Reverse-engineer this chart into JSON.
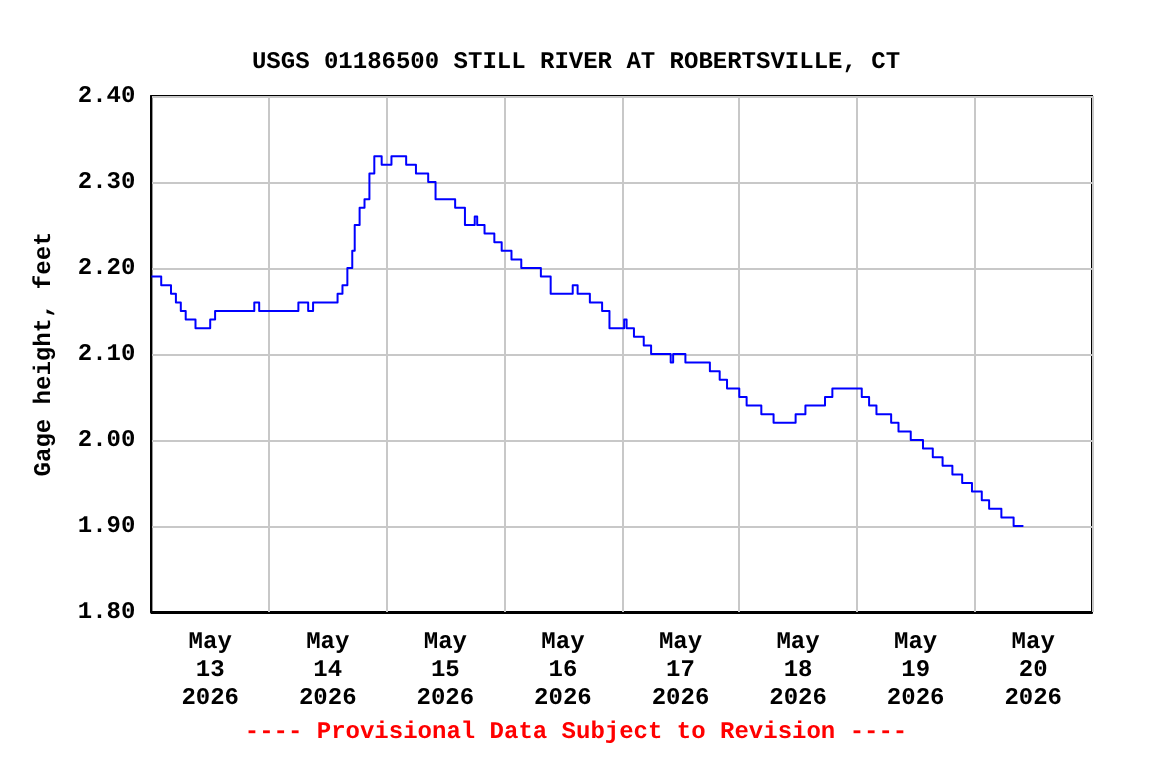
{
  "chart_data": {
    "type": "step",
    "title": "USGS 01186500 STILL RIVER AT ROBERTSVILLE, CT",
    "ylabel": "Gage height, feet",
    "annotations": [
      "---- Provisional Data Subject to Revision ----"
    ],
    "grid": true,
    "marker": "none",
    "line_style": "solid",
    "xlim": [
      "2026-05-13T00:00",
      "2026-05-21T00:00"
    ],
    "xticks": [
      {
        "value": "2026-05-13T00:00",
        "label": null
      },
      {
        "value": "2026-05-13T12:00",
        "label": "May\n13\n2026"
      },
      {
        "value": "2026-05-14T00:00",
        "label": null
      },
      {
        "value": "2026-05-14T12:00",
        "label": "May\n14\n2026"
      },
      {
        "value": "2026-05-15T00:00",
        "label": null
      },
      {
        "value": "2026-05-15T12:00",
        "label": "May\n15\n2026"
      },
      {
        "value": "2026-05-16T00:00",
        "label": null
      },
      {
        "value": "2026-05-16T12:00",
        "label": "May\n16\n2026"
      },
      {
        "value": "2026-05-17T00:00",
        "label": null
      },
      {
        "value": "2026-05-17T12:00",
        "label": "May\n17\n2026"
      },
      {
        "value": "2026-05-18T00:00",
        "label": null
      },
      {
        "value": "2026-05-18T12:00",
        "label": "May\n18\n2026"
      },
      {
        "value": "2026-05-19T00:00",
        "label": null
      },
      {
        "value": "2026-05-19T12:00",
        "label": "May\n19\n2026"
      },
      {
        "value": "2026-05-20T00:00",
        "label": null
      },
      {
        "value": "2026-05-20T12:00",
        "label": "May\n20\n2026"
      },
      {
        "value": "2026-05-21T00:00",
        "label": null
      }
    ],
    "ylim": [
      1.8,
      2.4
    ],
    "yticks": [
      {
        "value": 1.8,
        "label": "1.80"
      },
      {
        "value": 1.9,
        "label": "1.90"
      },
      {
        "value": 2.0,
        "label": "2.00"
      },
      {
        "value": 2.1,
        "label": "2.10"
      },
      {
        "value": 2.2,
        "label": "2.20"
      },
      {
        "value": 2.3,
        "label": "2.30"
      },
      {
        "value": 2.4,
        "label": "2.40"
      }
    ],
    "series": [
      {
        "color": "#0000ff",
        "x": [
          "2026-05-13T00:00",
          "2026-05-13T02:00",
          "2026-05-13T04:00",
          "2026-05-13T05:00",
          "2026-05-13T06:00",
          "2026-05-13T07:00",
          "2026-05-13T09:00",
          "2026-05-13T12:00",
          "2026-05-13T13:00",
          "2026-05-13T21:00",
          "2026-05-13T22:00",
          "2026-05-14T06:00",
          "2026-05-14T08:00",
          "2026-05-14T09:00",
          "2026-05-14T14:00",
          "2026-05-14T15:00",
          "2026-05-14T16:00",
          "2026-05-14T17:00",
          "2026-05-14T17:30",
          "2026-05-14T18:30",
          "2026-05-14T19:30",
          "2026-05-14T20:30",
          "2026-05-14T21:30",
          "2026-05-14T23:00",
          "2026-05-15T01:00",
          "2026-05-15T04:00",
          "2026-05-15T06:00",
          "2026-05-15T08:30",
          "2026-05-15T10:00",
          "2026-05-15T14:00",
          "2026-05-15T16:00",
          "2026-05-15T18:00",
          "2026-05-15T18:30",
          "2026-05-15T20:00",
          "2026-05-15T22:00",
          "2026-05-15T23:30",
          "2026-05-16T01:30",
          "2026-05-16T03:30",
          "2026-05-16T07:30",
          "2026-05-16T09:30",
          "2026-05-16T14:00",
          "2026-05-16T15:00",
          "2026-05-16T17:30",
          "2026-05-16T20:00",
          "2026-05-16T21:30",
          "2026-05-17T00:30",
          "2026-05-17T01:00",
          "2026-05-17T02:30",
          "2026-05-17T04:30",
          "2026-05-17T06:00",
          "2026-05-17T10:00",
          "2026-05-17T10:30",
          "2026-05-17T13:00",
          "2026-05-17T18:00",
          "2026-05-17T20:00",
          "2026-05-17T21:30",
          "2026-05-18T00:00",
          "2026-05-18T01:30",
          "2026-05-18T04:30",
          "2026-05-18T07:00",
          "2026-05-18T11:30",
          "2026-05-18T13:30",
          "2026-05-18T17:30",
          "2026-05-18T19:00",
          "2026-05-19T01:00",
          "2026-05-19T02:30",
          "2026-05-19T04:00",
          "2026-05-19T07:00",
          "2026-05-19T08:30",
          "2026-05-19T11:00",
          "2026-05-19T13:30",
          "2026-05-19T15:30",
          "2026-05-19T17:30",
          "2026-05-19T19:30",
          "2026-05-19T21:30",
          "2026-05-19T23:30",
          "2026-05-20T01:30",
          "2026-05-20T03:00",
          "2026-05-20T05:30",
          "2026-05-20T08:00",
          "2026-05-20T10:00"
        ],
        "values": [
          2.19,
          2.18,
          2.17,
          2.16,
          2.15,
          2.14,
          2.13,
          2.14,
          2.15,
          2.16,
          2.15,
          2.16,
          2.15,
          2.16,
          2.17,
          2.18,
          2.2,
          2.22,
          2.25,
          2.27,
          2.28,
          2.31,
          2.33,
          2.32,
          2.33,
          2.32,
          2.31,
          2.3,
          2.28,
          2.27,
          2.25,
          2.26,
          2.25,
          2.24,
          2.23,
          2.22,
          2.21,
          2.2,
          2.19,
          2.17,
          2.18,
          2.17,
          2.16,
          2.15,
          2.13,
          2.14,
          2.13,
          2.12,
          2.11,
          2.1,
          2.09,
          2.1,
          2.09,
          2.08,
          2.07,
          2.06,
          2.05,
          2.04,
          2.03,
          2.02,
          2.03,
          2.04,
          2.05,
          2.06,
          2.05,
          2.04,
          2.03,
          2.02,
          2.01,
          2.0,
          1.99,
          1.98,
          1.97,
          1.96,
          1.95,
          1.94,
          1.93,
          1.92,
          1.91,
          1.9,
          1.9
        ]
      }
    ]
  }
}
